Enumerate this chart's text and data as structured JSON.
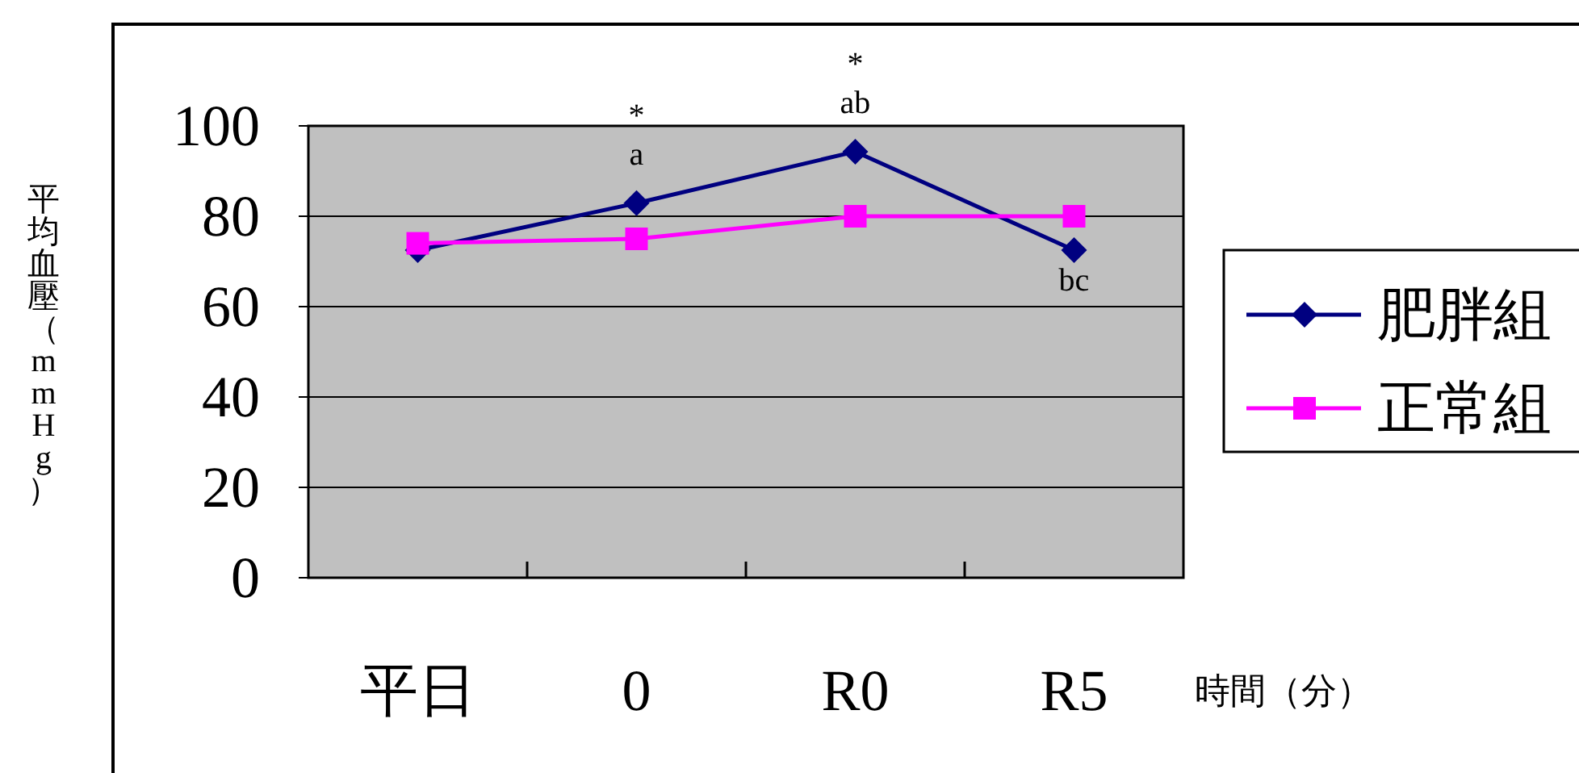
{
  "chart_data": {
    "type": "line",
    "xlabel": "時間（分）",
    "ylabel": "平均血壓（mmHg）",
    "categories": [
      "平日",
      "0",
      "R0",
      "R5"
    ],
    "series": [
      {
        "name": "肥胖組",
        "color": "#000080",
        "marker": "diamond",
        "values": [
          72.5,
          82.9,
          94.3,
          72.5
        ]
      },
      {
        "name": "正常組",
        "color": "#ff00ff",
        "marker": "square",
        "values": [
          74,
          75,
          80,
          80
        ]
      }
    ],
    "ylim": [
      0,
      100
    ],
    "yticks": [
      0,
      20,
      40,
      60,
      80,
      100
    ],
    "grid": "y",
    "legend": "right",
    "annotations": [
      {
        "text": "a",
        "x": "0",
        "y": 82.9
      },
      {
        "text": "*",
        "x": "0",
        "y": 82.9
      },
      {
        "text": "ab",
        "x": "R0",
        "y": 94.3
      },
      {
        "text": "*",
        "x": "R0",
        "y": 94.3
      },
      {
        "text": "bc",
        "x": "R5",
        "y": 72.5
      }
    ]
  }
}
